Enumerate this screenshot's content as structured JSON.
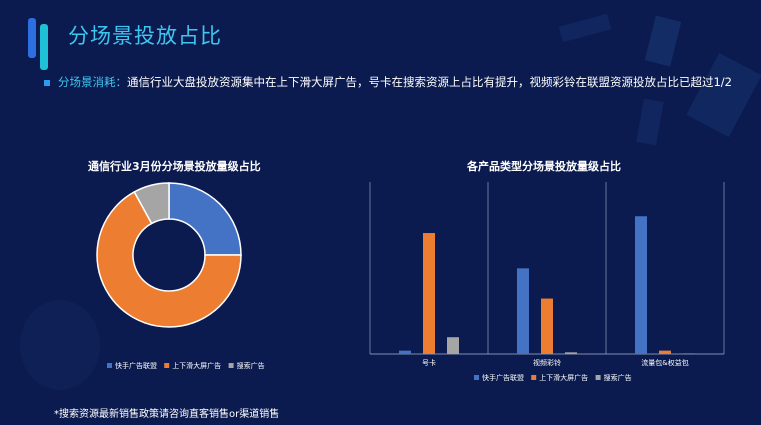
{
  "page_title": "分场景投放占比",
  "summary": {
    "lead": "分场景消耗：",
    "text": "通信行业大盘投放资源集中在上下滑大屏广告，号卡在搜索资源上占比有提升，视频彩铃在联盟资源投放占比已超过1/2"
  },
  "footnote": "*搜索资源最新销售政策请咨询直客销售or渠道销售",
  "colors": {
    "background": "#0b1b4f",
    "accent": "#3fc6f0",
    "series_blue": "#4472c4",
    "series_orange": "#ed7d31",
    "series_gray": "#a5a5a5"
  },
  "chart_data": [
    {
      "type": "pie",
      "title": "通信行业3月份分场景投放量级占比",
      "donut": true,
      "labels": [
        "快手广告联盟",
        "上下滑大屏广告",
        "搜索广告"
      ],
      "values": [
        25,
        67,
        8
      ],
      "legend": "bottom"
    },
    {
      "type": "bar",
      "title": "各产品类型分场景投放量级占比",
      "categories": [
        "号卡",
        "视频彩铃",
        "流量包&权益包"
      ],
      "series": [
        {
          "name": "快手广告联盟",
          "values": [
            2,
            51,
            82
          ]
        },
        {
          "name": "上下滑大屏广告",
          "values": [
            72,
            33,
            2
          ]
        },
        {
          "name": "搜索广告",
          "values": [
            10,
            1,
            0
          ]
        }
      ],
      "ylim": [
        0,
        100
      ],
      "grid": false,
      "legend": "bottom"
    }
  ]
}
